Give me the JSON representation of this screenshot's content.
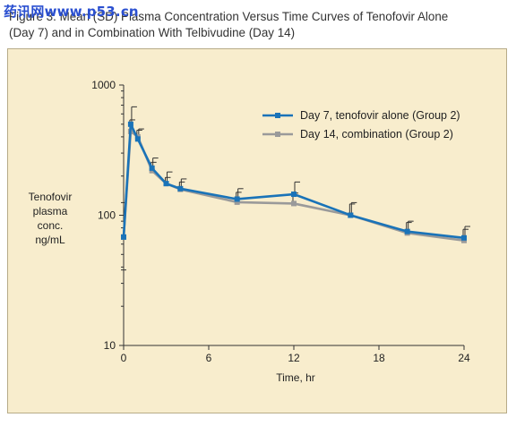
{
  "header": {
    "title": "Figure 3. Mean (SD) Plasma Concentration Versus Time Curves of Tenofovir Alone\n(Day 7) and in Combination With Telbivudine (Day 14)",
    "watermark": "药讯网www.p53.cn"
  },
  "colors": {
    "panel_bg": "#f8edcd",
    "series_1": "#1a73b8",
    "series_2": "#9a9a9a",
    "axis": "#333333",
    "error_bar": "#333333"
  },
  "chart_data": {
    "type": "line",
    "title": "Mean (SD) Plasma Concentration Versus Time Curves of Tenofovir Alone (Day 7) and in Combination With Telbivudine (Day 14)",
    "xlabel": "Time, hr",
    "ylabel": [
      "Tenofovir",
      "plasma",
      "conc.",
      "ng/mL"
    ],
    "xlim": [
      0,
      24
    ],
    "ylim": [
      10,
      1000
    ],
    "yscale": "log",
    "x_ticks": [
      0,
      6,
      12,
      18,
      24
    ],
    "y_ticks": [
      10,
      100,
      1000
    ],
    "legend_position": "top-right",
    "x": [
      0,
      0.5,
      1,
      2,
      3,
      4,
      8,
      12,
      16,
      20,
      24
    ],
    "series": [
      {
        "name": "Day 7, tenofovir alone (Group 2)",
        "marker": "square",
        "values": [
          68,
          500,
          385,
          230,
          175,
          160,
          133,
          145,
          100,
          75,
          67
        ],
        "sd_upper": [
          null,
          680,
          460,
          275,
          215,
          190,
          160,
          180,
          125,
          90,
          82
        ]
      },
      {
        "name": "Day 14, combination (Group 2)",
        "marker": "square",
        "values": [
          68,
          440,
          400,
          220,
          175,
          158,
          126,
          123,
          100,
          73,
          64
        ],
        "sd_upper": [
          null,
          540,
          450,
          255,
          195,
          180,
          150,
          148,
          122,
          88,
          78
        ]
      }
    ],
    "baseline_sd_range": [
      38,
      125
    ]
  }
}
